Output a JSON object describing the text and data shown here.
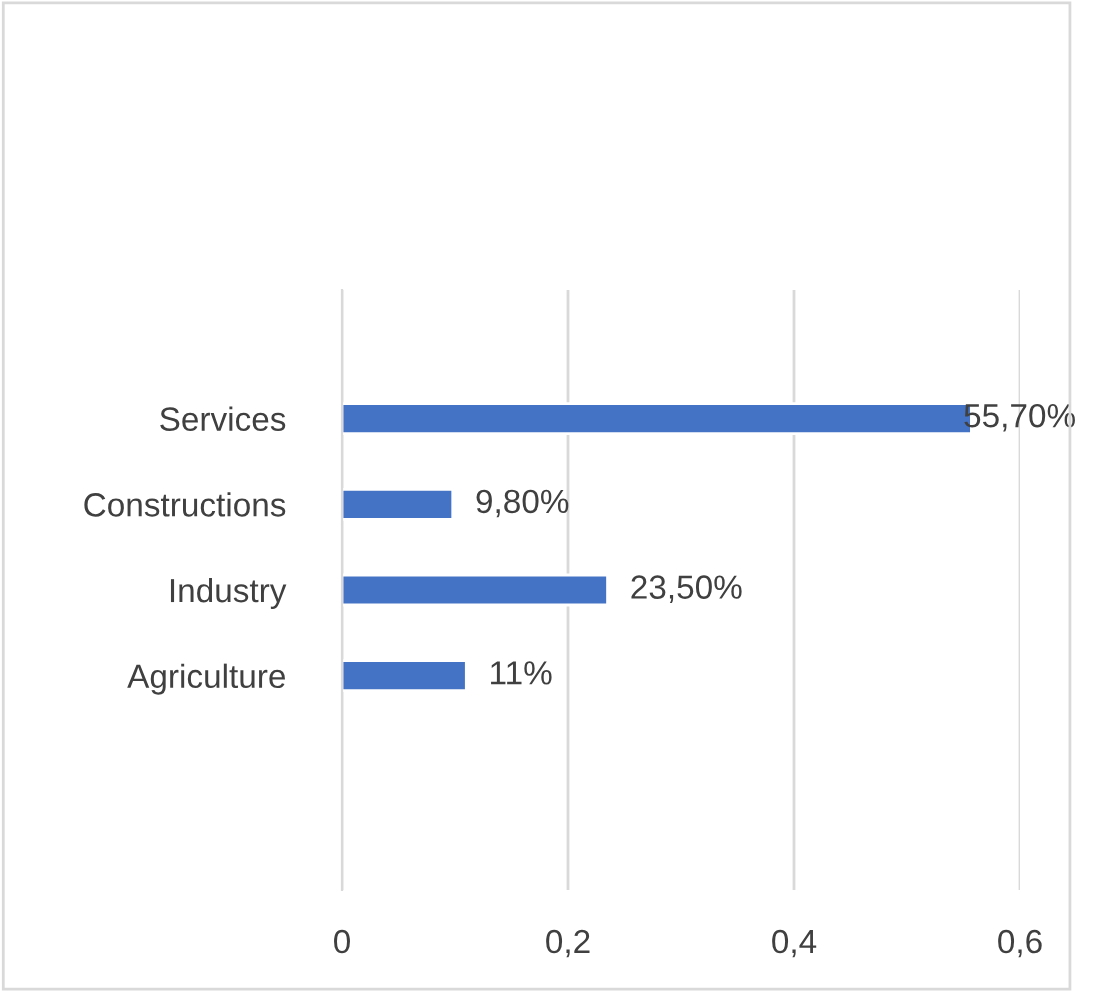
{
  "chart_data": {
    "type": "bar",
    "orientation": "horizontal",
    "categories": [
      null,
      "Services",
      "Constructions",
      "Industry",
      "Agriculture",
      null,
      null
    ],
    "values": [
      null,
      0.557,
      0.098,
      0.235,
      0.11,
      null,
      null
    ],
    "value_labels": [
      null,
      "55,70%",
      "9,80%",
      "23,50%",
      "11%",
      null,
      null
    ],
    "color": "#4472c4",
    "xlim": [
      0,
      0.6
    ],
    "xticks": [
      0,
      {
        "value": 0.2,
        "label": "0,2"
      },
      {
        "value": 0.4,
        "label": "0,4"
      },
      {
        "value": 0.6,
        "label": "0,6"
      }
    ],
    "grid": "x"
  }
}
